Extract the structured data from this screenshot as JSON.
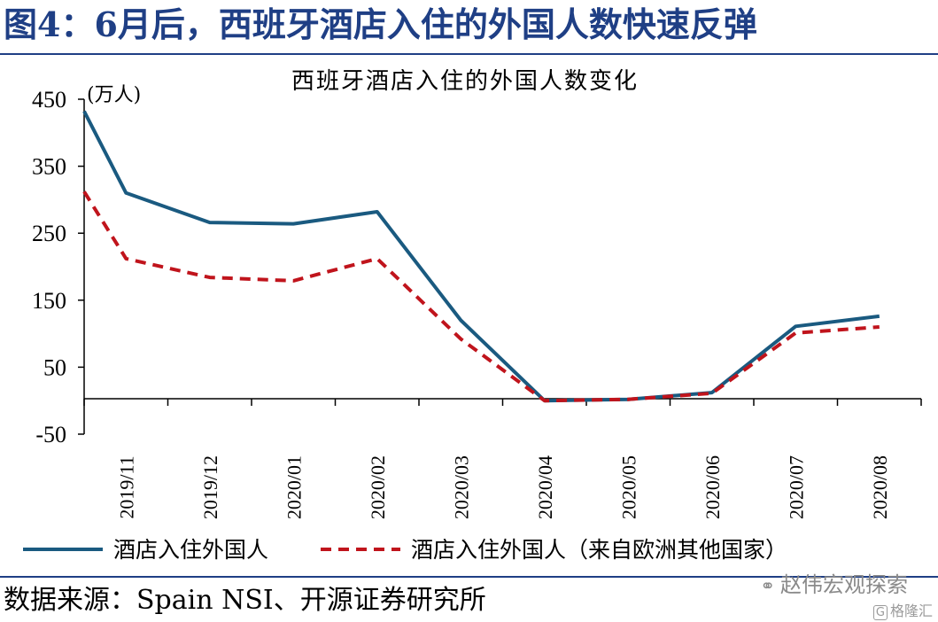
{
  "figure": {
    "title": "图4：6月后，西班牙酒店入住的外国人数快速反弹",
    "source": "数据来源：Spain NSI、开源证券研究所"
  },
  "watermark": {
    "icon": "wechat-icon",
    "text": "赵伟宏观探索"
  },
  "badge": {
    "icon": "g-logo-icon",
    "text": "格隆汇"
  },
  "colors": {
    "title": "#1f3f85",
    "series_total": "#1a5a80",
    "series_europe": "#c0141c"
  },
  "chart_data": {
    "type": "line",
    "title": "西班牙酒店入住的外国人数变化",
    "unit_label": "(万人)",
    "categories": [
      "2019/11",
      "2019/12",
      "2020/01",
      "2020/02",
      "2020/03",
      "2020/04",
      "2020/05",
      "2020/06",
      "2020/07",
      "2020/08"
    ],
    "yticks": [
      450,
      350,
      250,
      150,
      50,
      -50
    ],
    "ylim": [
      -50,
      450
    ],
    "xlabel": "",
    "ylabel": "",
    "legend_position": "bottom",
    "series": [
      {
        "name": "酒店入住外国人",
        "style": "solid",
        "color": "#1a5a80",
        "start_value": 432,
        "values": [
          310,
          266,
          264,
          282,
          120,
          0,
          2,
          12,
          111,
          126
        ]
      },
      {
        "name": "酒店入住外国人（来自欧洲其他国家）",
        "style": "dashed",
        "color": "#c0141c",
        "start_value": 312,
        "values": [
          212,
          184,
          179,
          212,
          92,
          0,
          2,
          11,
          101,
          110
        ]
      }
    ]
  }
}
